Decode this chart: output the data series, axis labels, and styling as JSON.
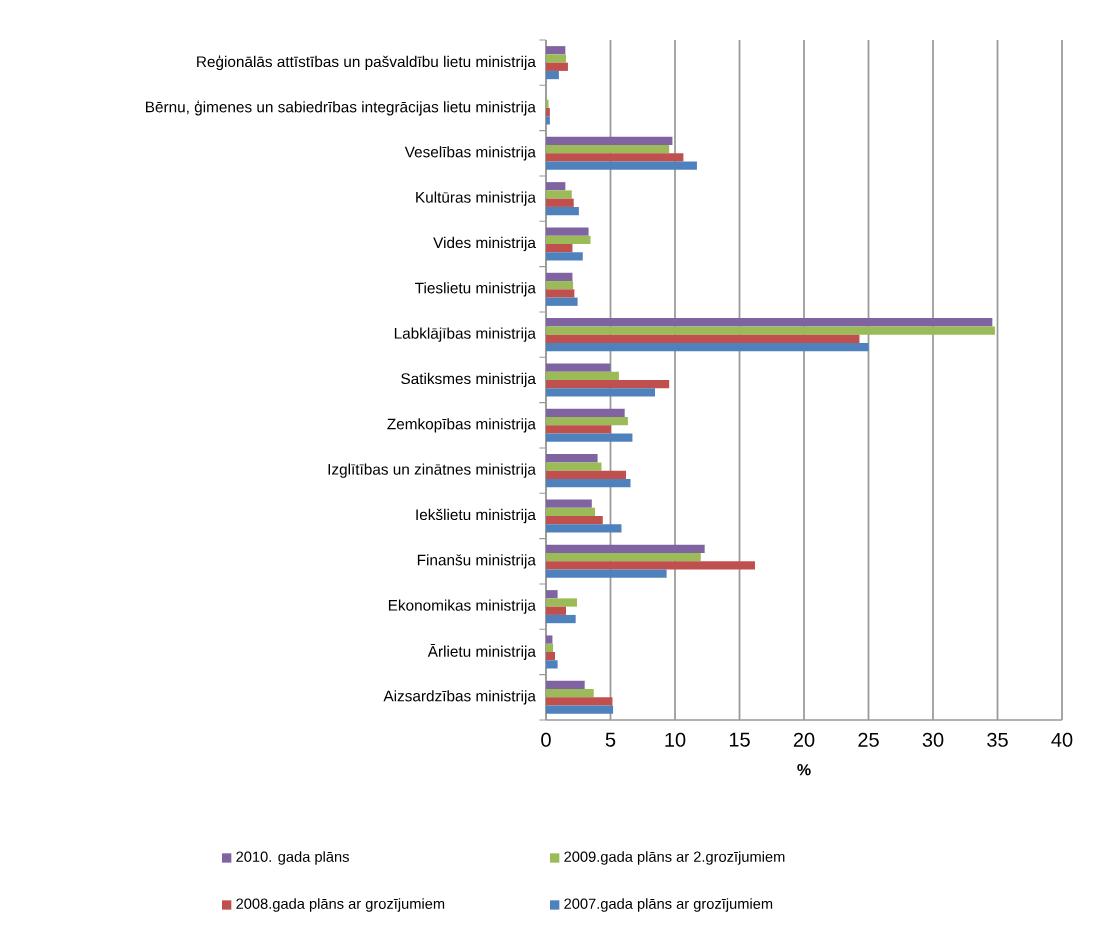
{
  "chart_data": {
    "type": "bar",
    "orientation": "horizontal",
    "xlabel": "%",
    "categories": [
      "Reģionālās attīstības un pašvaldību lietu ministrija",
      "Bērnu, ģimenes un sabiedrības integrācijas lietu ministrija",
      "Veselības ministrija",
      "Kultūras ministrija",
      "Vides ministrija",
      "Tieslietu ministrija",
      "Labklājības ministrija",
      "Satiksmes ministrija",
      "Zemkopības ministrija",
      "Izglītības un zinātnes ministrija",
      "Iekšlietu ministrija",
      "Finanšu ministrija",
      "Ekonomikas ministrija",
      "Ārlietu ministrija",
      "Aizsardzības ministrija"
    ],
    "series": [
      {
        "name": "2010. gada plāns",
        "color": "#8064a2",
        "values": [
          1.5,
          null,
          9.8,
          1.5,
          3.3,
          2.05,
          34.6,
          5.0,
          6.1,
          4.0,
          3.55,
          12.3,
          0.9,
          0.5,
          3.0
        ]
      },
      {
        "name": "2009.gada plāns ar 2.grozījumiem",
        "color": "#9bbb59",
        "values": [
          1.55,
          0.2,
          9.55,
          2.0,
          3.45,
          2.1,
          34.8,
          5.65,
          6.35,
          4.3,
          3.8,
          12.0,
          2.4,
          0.55,
          3.7
        ]
      },
      {
        "name": "2008.gada plāns ar grozījumiem",
        "color": "#c0504d",
        "values": [
          1.7,
          0.3,
          10.65,
          2.15,
          2.05,
          2.2,
          24.3,
          9.55,
          5.05,
          6.2,
          4.4,
          16.2,
          1.55,
          0.7,
          5.15
        ]
      },
      {
        "name": "2007.gada plāns ar grozījumiem",
        "color": "#4f81bd",
        "values": [
          1.0,
          0.3,
          11.7,
          2.55,
          2.85,
          2.45,
          25.0,
          8.45,
          6.7,
          6.55,
          5.85,
          9.35,
          2.3,
          0.9,
          5.2
        ]
      }
    ],
    "xlim": [
      0,
      40
    ],
    "xticks": [
      0,
      5,
      10,
      15,
      20,
      25,
      30,
      35,
      40
    ],
    "grid": "x",
    "legend": "bottom"
  }
}
